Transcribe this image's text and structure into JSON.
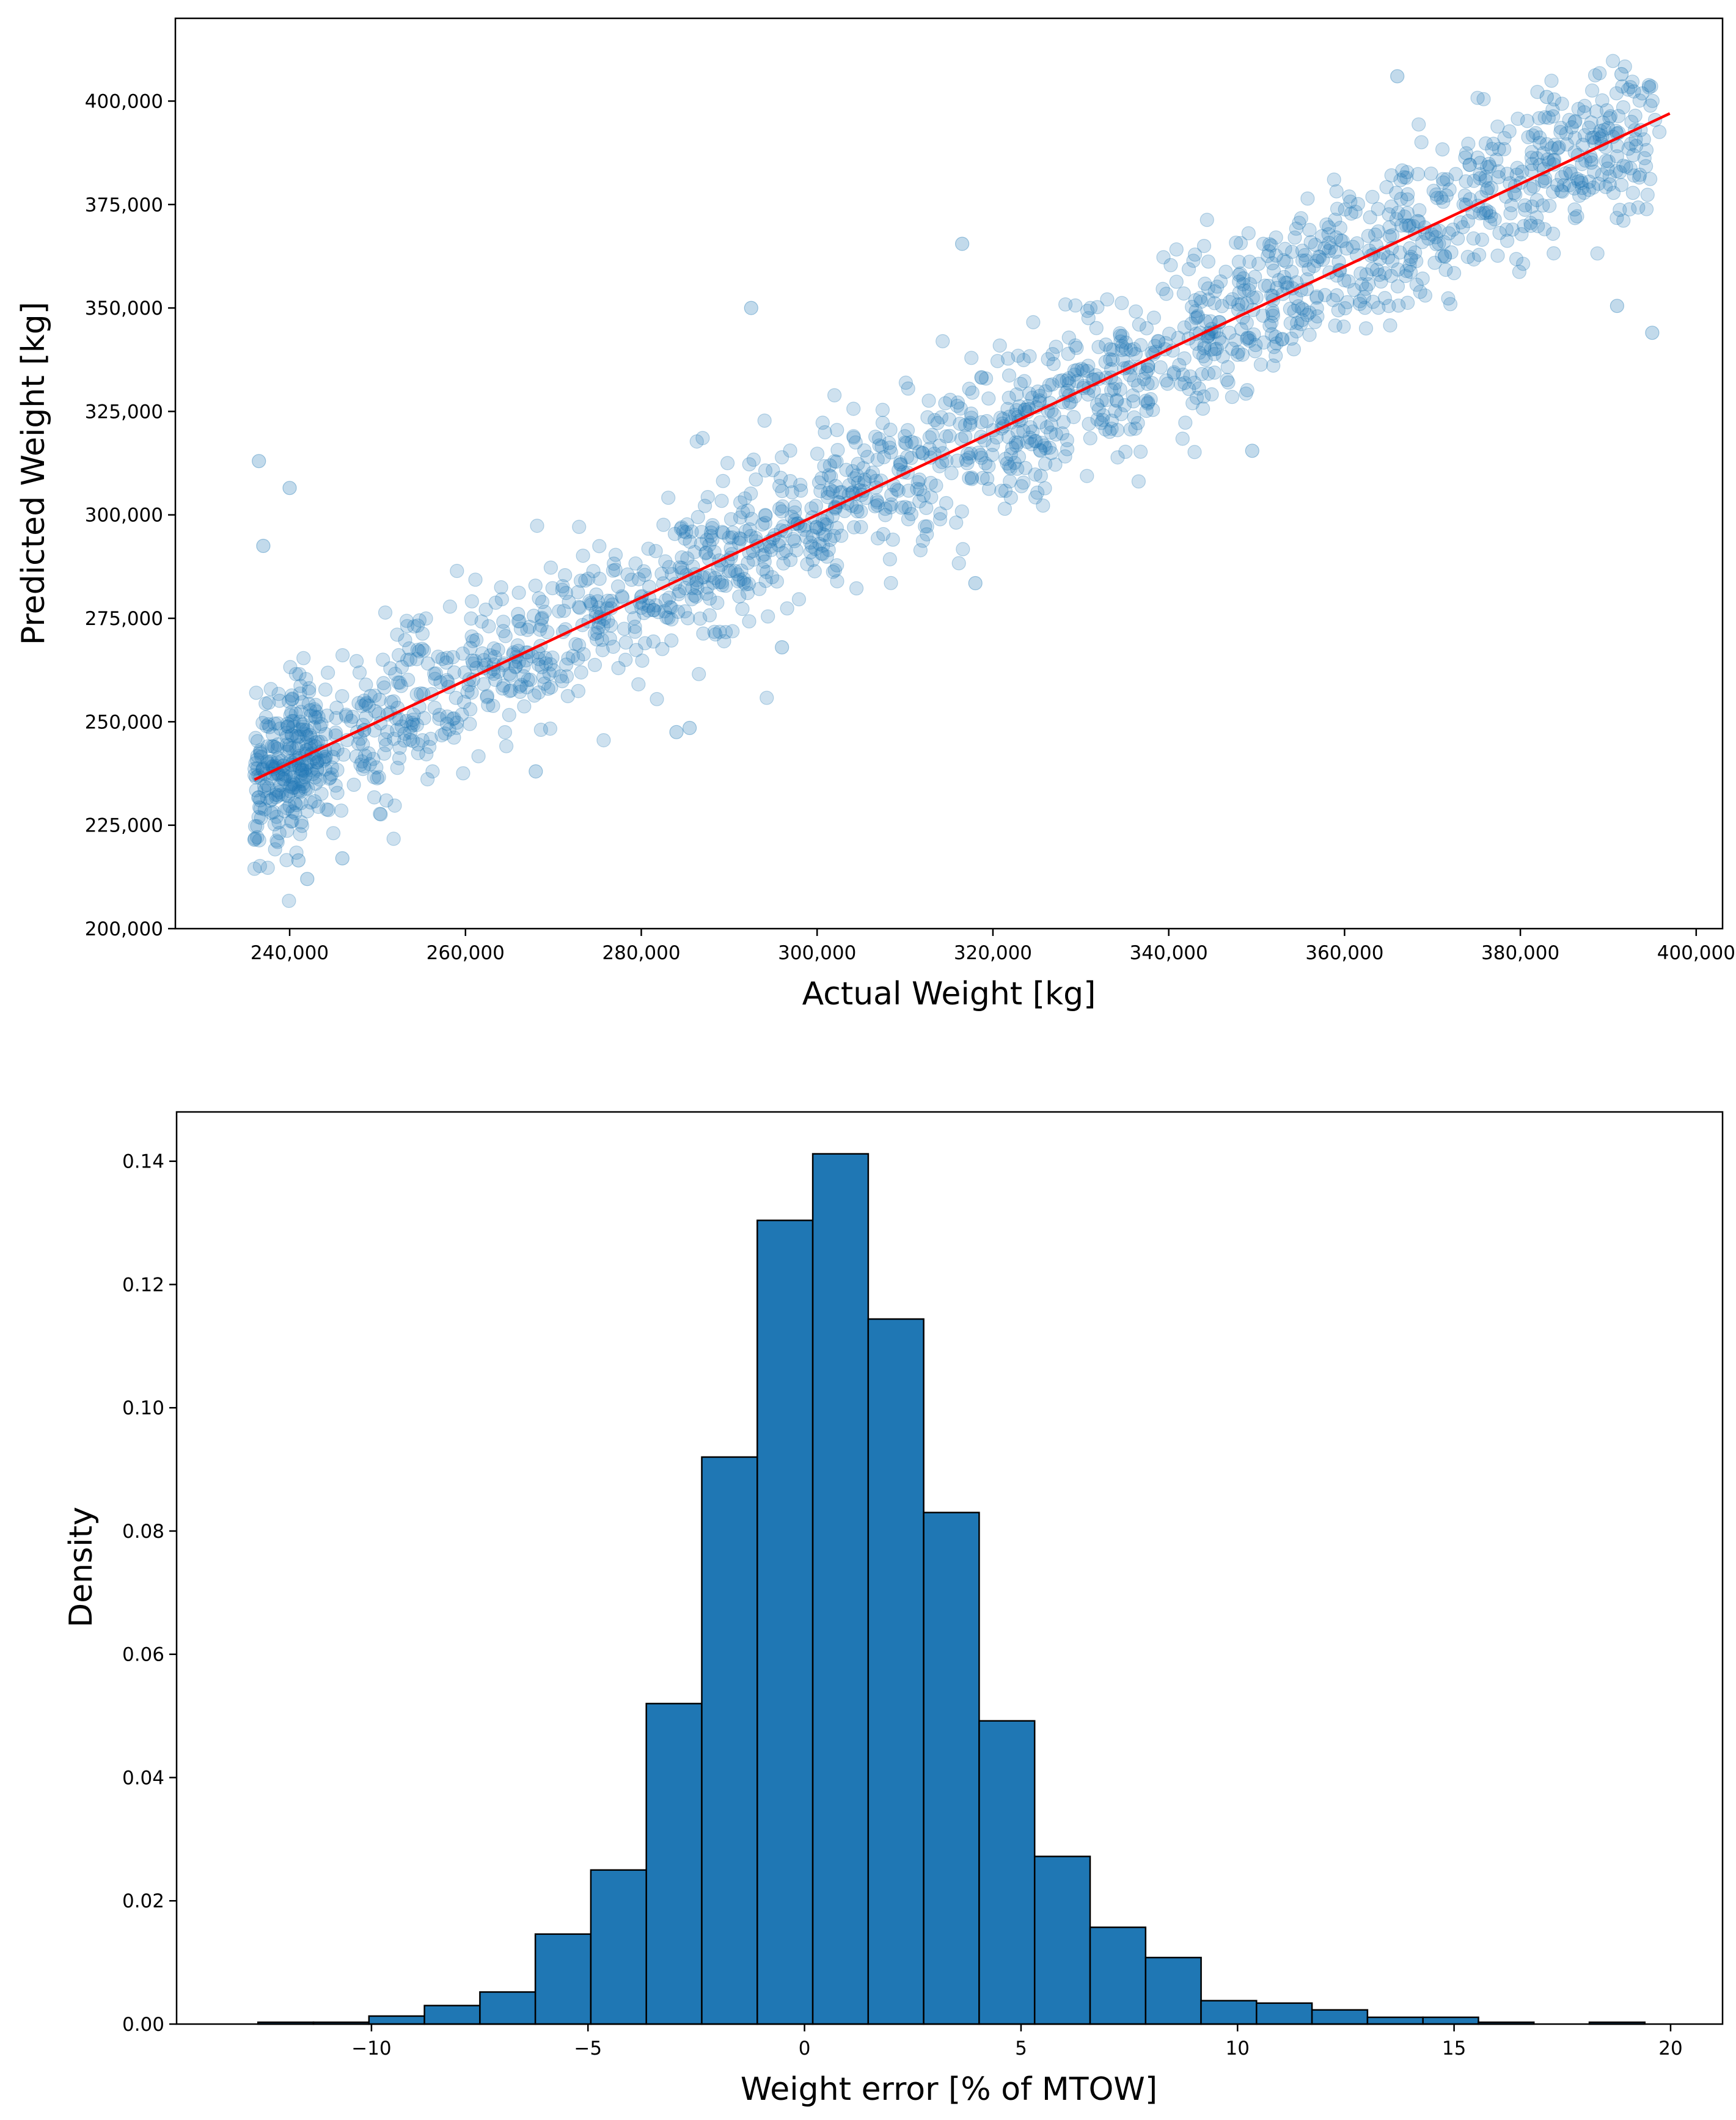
{
  "chart_data": [
    {
      "type": "scatter",
      "title": "",
      "xlabel": "Actual Weight [kg]",
      "ylabel": "Predicted Weight [kg]",
      "xlim": [
        227000,
        403000
      ],
      "ylim": [
        200000,
        420000
      ],
      "xticks": [
        240000,
        260000,
        280000,
        300000,
        320000,
        340000,
        360000,
        380000,
        400000
      ],
      "xtick_labels": [
        "240,000",
        "260,000",
        "280,000",
        "300,000",
        "320,000",
        "340,000",
        "360,000",
        "380,000",
        "400,000"
      ],
      "yticks": [
        200000,
        225000,
        250000,
        275000,
        300000,
        325000,
        350000,
        375000,
        400000
      ],
      "ytick_labels": [
        "200,000",
        "225,000",
        "250,000",
        "275,000",
        "300,000",
        "325,000",
        "350,000",
        "375,000",
        "400,000"
      ],
      "points": {
        "description": "~2000 semi-transparent points scattered around the y = x line with roughly +/-15,000 kg spread",
        "count": 2000,
        "x_range": [
          236000,
          396000
        ],
        "spread_sd": 9500,
        "color": "#1f77b4",
        "alpha": 0.22,
        "seed": 7
      },
      "outliers": [
        {
          "x": 236500,
          "y": 313000
        },
        {
          "x": 237000,
          "y": 292500
        },
        {
          "x": 240000,
          "y": 306500
        },
        {
          "x": 242000,
          "y": 212000
        },
        {
          "x": 246000,
          "y": 217000
        },
        {
          "x": 236000,
          "y": 221500
        },
        {
          "x": 241000,
          "y": 216500
        },
        {
          "x": 285500,
          "y": 248500
        },
        {
          "x": 284000,
          "y": 247500
        },
        {
          "x": 268000,
          "y": 238000
        },
        {
          "x": 318000,
          "y": 283500
        },
        {
          "x": 316500,
          "y": 365500
        },
        {
          "x": 366000,
          "y": 406000
        },
        {
          "x": 391500,
          "y": 406500
        },
        {
          "x": 395000,
          "y": 344000
        },
        {
          "x": 391000,
          "y": 350500
        },
        {
          "x": 383000,
          "y": 401000
        },
        {
          "x": 349500,
          "y": 315500
        },
        {
          "x": 292500,
          "y": 350000
        },
        {
          "x": 296000,
          "y": 268000
        }
      ],
      "fit_line": {
        "x": [
          236000,
          397000
        ],
        "y": [
          236000,
          397000
        ],
        "color": "#ff0000"
      }
    },
    {
      "type": "bar",
      "title": "",
      "xlabel": "Weight error [% of MTOW]",
      "ylabel": "Density",
      "xlim": [
        -14.5,
        21.2
      ],
      "ylim": [
        0,
        0.148
      ],
      "xticks": [
        -10,
        -5,
        0,
        5,
        10,
        15,
        20
      ],
      "xtick_labels": [
        "−10",
        "−5",
        "0",
        "5",
        "10",
        "15",
        "20"
      ],
      "yticks": [
        0,
        0.02,
        0.04,
        0.06,
        0.08,
        0.1,
        0.12,
        0.14
      ],
      "ytick_labels": [
        "0.00",
        "0.02",
        "0.04",
        "0.06",
        "0.08",
        "0.10",
        "0.12",
        "0.14"
      ],
      "bin_start": -12.62,
      "bin_width": 1.281,
      "values": [
        0.0003,
        0.0003,
        0.0013,
        0.003,
        0.0052,
        0.0146,
        0.025,
        0.052,
        0.092,
        0.1304,
        0.1412,
        0.1144,
        0.083,
        0.0492,
        0.0272,
        0.0157,
        0.0108,
        0.0038,
        0.0034,
        0.0023,
        0.0011,
        0.0011,
        0.0003,
        0.0,
        0.0003
      ],
      "bar_color": "#1f77b4",
      "edge_color": "#000000"
    }
  ]
}
